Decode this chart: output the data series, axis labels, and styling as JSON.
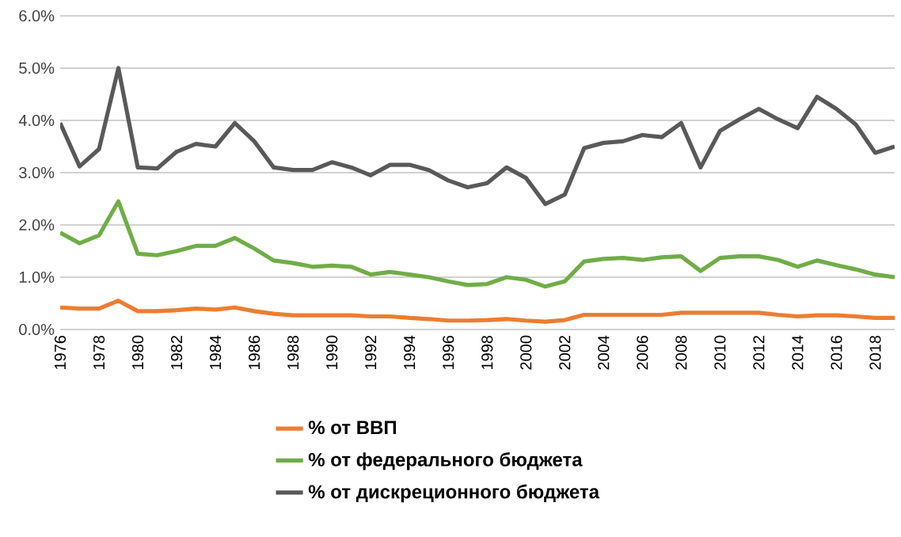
{
  "chart_data": {
    "type": "line",
    "x": [
      1976,
      1977,
      1978,
      1979,
      1980,
      1981,
      1982,
      1983,
      1984,
      1985,
      1986,
      1987,
      1988,
      1989,
      1990,
      1991,
      1992,
      1993,
      1994,
      1995,
      1996,
      1997,
      1998,
      1999,
      2000,
      2001,
      2002,
      2003,
      2004,
      2005,
      2006,
      2007,
      2008,
      2009,
      2010,
      2011,
      2012,
      2013,
      2014,
      2015,
      2016,
      2017,
      2018,
      2019
    ],
    "series": [
      {
        "name": "% от ВВП",
        "color": "#ed7d31",
        "values": [
          0.42,
          0.4,
          0.4,
          0.55,
          0.35,
          0.35,
          0.37,
          0.4,
          0.38,
          0.42,
          0.35,
          0.3,
          0.27,
          0.27,
          0.27,
          0.27,
          0.25,
          0.25,
          0.22,
          0.2,
          0.17,
          0.17,
          0.18,
          0.2,
          0.17,
          0.15,
          0.18,
          0.28,
          0.28,
          0.28,
          0.28,
          0.28,
          0.32,
          0.32,
          0.32,
          0.32,
          0.32,
          0.28,
          0.25,
          0.27,
          0.27,
          0.25,
          0.22,
          0.22
        ]
      },
      {
        "name": "% от федерального бюджета",
        "color": "#70ad47",
        "values": [
          1.85,
          1.65,
          1.8,
          2.45,
          1.45,
          1.42,
          1.5,
          1.6,
          1.6,
          1.75,
          1.55,
          1.32,
          1.27,
          1.2,
          1.22,
          1.2,
          1.05,
          1.1,
          1.05,
          1.0,
          0.92,
          0.85,
          0.87,
          1.0,
          0.95,
          0.82,
          0.92,
          1.3,
          1.35,
          1.37,
          1.33,
          1.38,
          1.4,
          1.12,
          1.37,
          1.4,
          1.4,
          1.33,
          1.2,
          1.32,
          1.23,
          1.15,
          1.05,
          1.0
        ]
      },
      {
        "name": "% от дискреционного бюджета",
        "color": "#595959",
        "values": [
          3.95,
          3.12,
          3.45,
          5.0,
          3.1,
          3.08,
          3.4,
          3.55,
          3.5,
          3.95,
          3.6,
          3.1,
          3.05,
          3.05,
          3.2,
          3.1,
          2.95,
          3.15,
          3.15,
          3.05,
          2.85,
          2.72,
          2.8,
          3.1,
          2.9,
          2.4,
          2.58,
          3.47,
          3.57,
          3.6,
          3.72,
          3.68,
          3.95,
          3.1,
          3.8,
          4.02,
          4.22,
          4.02,
          3.85,
          4.45,
          4.22,
          3.92,
          3.38,
          3.5
        ]
      }
    ],
    "xlim": [
      1976,
      2019
    ],
    "xticks": [
      1976,
      1978,
      1980,
      1982,
      1984,
      1986,
      1988,
      1990,
      1992,
      1994,
      1996,
      1998,
      2000,
      2002,
      2004,
      2006,
      2008,
      2010,
      2012,
      2014,
      2016,
      2018
    ],
    "ylim": [
      0,
      6
    ],
    "yticks": [
      {
        "value": 0,
        "label": "0.0%"
      },
      {
        "value": 1,
        "label": "1.0%"
      },
      {
        "value": 2,
        "label": "2.0%"
      },
      {
        "value": 3,
        "label": "3.0%"
      },
      {
        "value": 4,
        "label": "4.0%"
      },
      {
        "value": 5,
        "label": "5.0%"
      },
      {
        "value": 6,
        "label": "6.0%"
      }
    ],
    "grid": "y",
    "legend": "bottom"
  }
}
